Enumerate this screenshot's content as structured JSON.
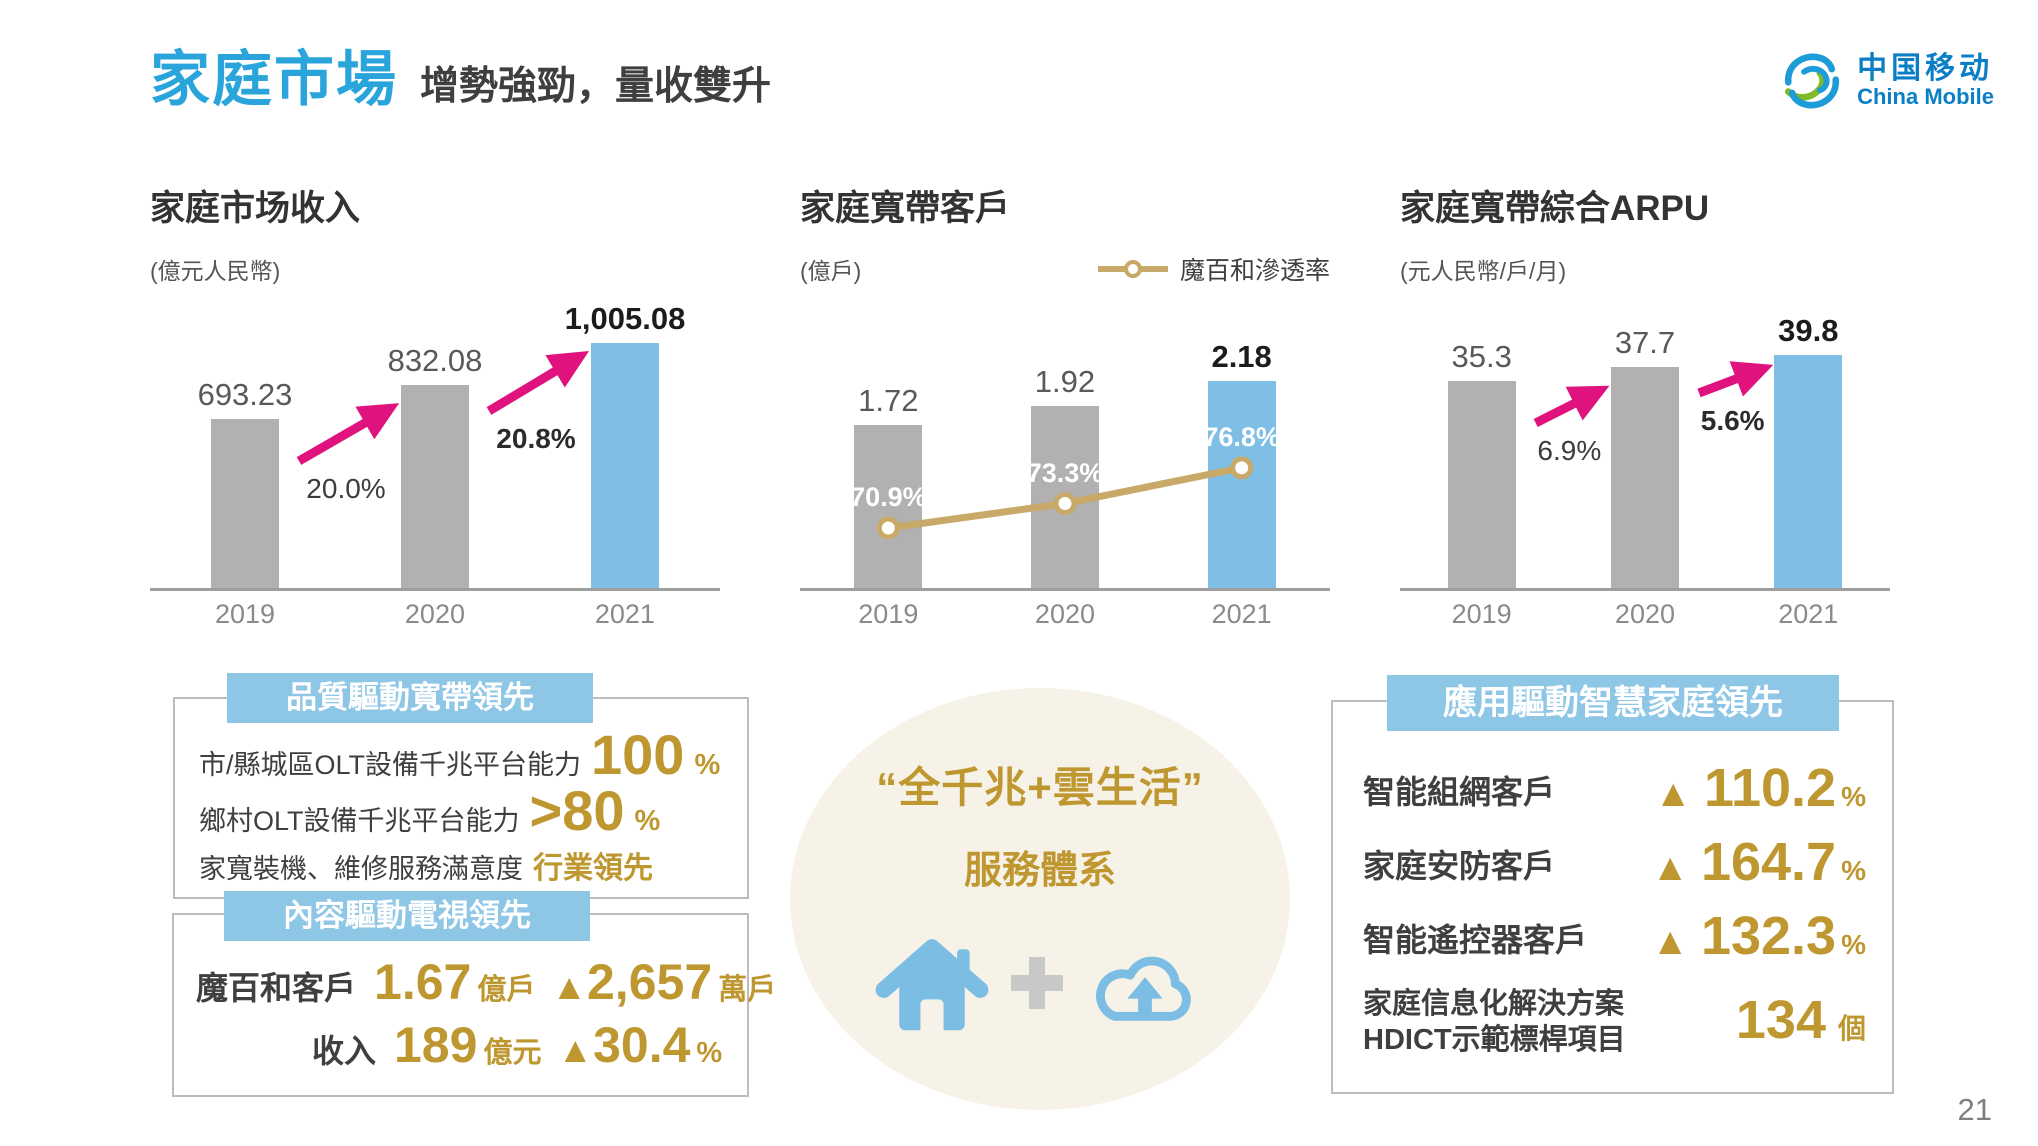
{
  "page": {
    "title": "家庭市場",
    "subtitle": "增勢強勁，量收雙升",
    "page_number": "21"
  },
  "logo": {
    "zh": "中国移动",
    "en": "China Mobile"
  },
  "colors": {
    "brand_blue": "#2AA5DC",
    "bar_gray": "#B1B1B1",
    "bar_blue": "#7FBFE5",
    "magenta": "#E0127E",
    "gold": "#BE9730",
    "gold_line": "#C8A968",
    "band_blue": "#8EC6E6"
  },
  "chart_data": [
    {
      "type": "bar",
      "title": "家庭市场收入",
      "unit": "(億元人民幣)",
      "categories": [
        "2019",
        "2020",
        "2021"
      ],
      "values": [
        693.23,
        832.08,
        1005.08
      ],
      "value_labels": [
        "693.23",
        "832.08",
        "1,005.08"
      ],
      "growth_labels": [
        "20.0%",
        "20.8%"
      ],
      "highlight_index": 2,
      "ylim": [
        0,
        1005.08
      ],
      "grid": false
    },
    {
      "type": "bar",
      "title": "家庭寬帶客戶",
      "unit": "(億戶)",
      "legend": "魔百和滲透率",
      "categories": [
        "2019",
        "2020",
        "2021"
      ],
      "values": [
        1.72,
        1.92,
        2.18
      ],
      "value_labels": [
        "1.72",
        "1.92",
        "2.18"
      ],
      "highlight_index": 2,
      "ylim": [
        0,
        2.18
      ],
      "grid": false,
      "line_series": {
        "name": "魔百和滲透率",
        "values": [
          70.9,
          73.3,
          76.8
        ],
        "labels": [
          "70.9%",
          "73.3%",
          "76.8%"
        ]
      }
    },
    {
      "type": "bar",
      "title": "家庭寬帶綜合ARPU",
      "unit": "(元人民幣/戶/月)",
      "categories": [
        "2019",
        "2020",
        "2021"
      ],
      "values": [
        35.3,
        37.7,
        39.8
      ],
      "value_labels": [
        "35.3",
        "37.7",
        "39.8"
      ],
      "growth_labels": [
        "6.9%",
        "5.6%"
      ],
      "highlight_index": 2,
      "ylim": [
        0,
        39.8
      ],
      "grid": false
    }
  ],
  "boxes": {
    "quality": {
      "header": "品質驅動寬帶領先",
      "rows": [
        {
          "label": "市/縣城區OLT設備千兆平台能力",
          "big": "100",
          "suffix": "%"
        },
        {
          "label": "鄉村OLT設備千兆平台能力",
          "big": ">80",
          "suffix": "%"
        },
        {
          "label": "家寬裝機、維修服務滿意度",
          "strong": "行業領先"
        }
      ]
    },
    "content": {
      "header": "內容驅動電視領先",
      "rows": [
        {
          "label": "魔百和客戶",
          "num1": "1.67",
          "unit1": "億戶",
          "tri": "▲",
          "num2": "2,657",
          "unit2": "萬戶"
        },
        {
          "label": "收入",
          "num1": "189",
          "unit1": "億元",
          "tri": "▲",
          "num2": "30.4",
          "unit2": "%"
        }
      ]
    },
    "application": {
      "header": "應用驅動智慧家庭領先",
      "rows": [
        {
          "label": "智能組網客戶",
          "tri": "▲",
          "num": "110.2",
          "suffix": "%"
        },
        {
          "label": "家庭安防客戶",
          "tri": "▲",
          "num": "164.7",
          "suffix": "%"
        },
        {
          "label": "智能遙控器客戶",
          "tri": "▲",
          "num": "132.3",
          "suffix": "%"
        },
        {
          "label_line1": "家庭信息化解決方案",
          "label_line2": "HDICT示範標桿項目",
          "num": "134",
          "suffix": "個"
        }
      ]
    }
  },
  "ellipse": {
    "line1": "“全千兆+雲生活”",
    "line2": "服務體系"
  }
}
